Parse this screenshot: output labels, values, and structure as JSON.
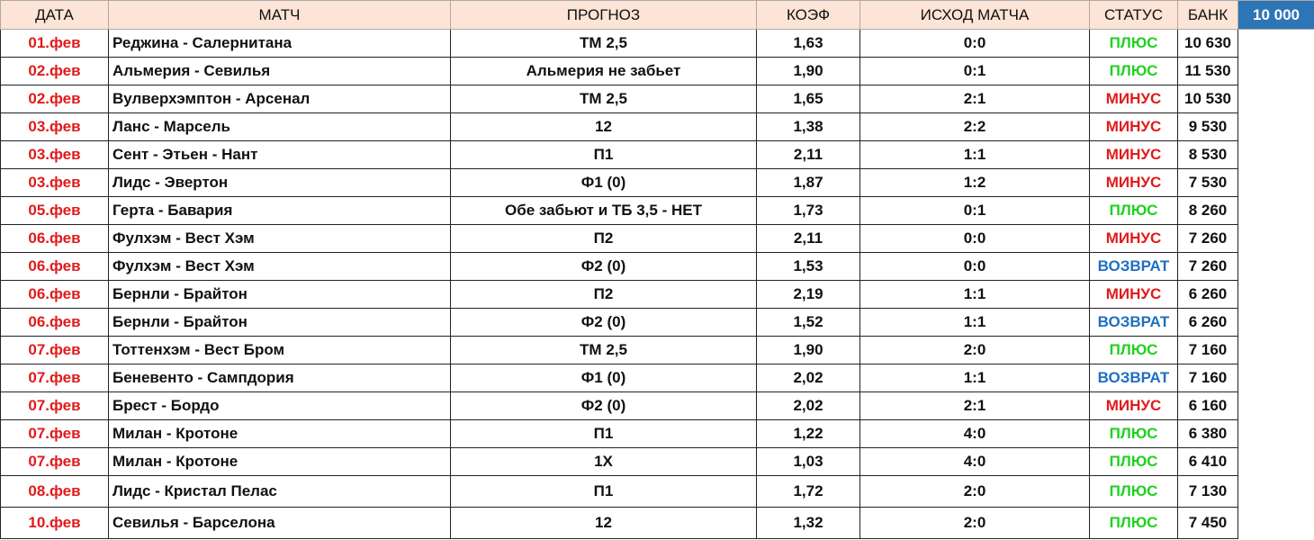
{
  "table": {
    "header": [
      "ДАТА",
      "МАТЧ",
      "ПРОГНОЗ",
      "КОЭФ",
      "ИСХОД МАТЧА",
      "СТАТУС",
      "БАНК"
    ],
    "bank_start": "10 000",
    "rows": [
      [
        "01.фев",
        "Реджина -  Салернитана",
        "ТМ 2,5",
        "1,63",
        "0:0",
        "ПЛЮС",
        "10 630"
      ],
      [
        "02.фев",
        "Альмерия -  Севилья",
        "Альмерия  не забьет",
        "1,90",
        "0:1",
        "ПЛЮС",
        "11 530"
      ],
      [
        "02.фев",
        "Вулверхэмптон -  Арсенал",
        "ТМ 2,5",
        "1,65",
        "2:1",
        "МИНУС",
        "10 530"
      ],
      [
        "03.фев",
        "Ланс -  Марсель",
        "12",
        "1,38",
        "2:2",
        "МИНУС",
        "9 530"
      ],
      [
        "03.фев",
        "Сент - Этьен -  Нант",
        "П1",
        "2,11",
        "1:1",
        "МИНУС",
        "8 530"
      ],
      [
        "03.фев",
        "Лидс -  Эвертон",
        "Ф1 (0)",
        "1,87",
        "1:2",
        "МИНУС",
        "7 530"
      ],
      [
        "05.фев",
        "Герта -  Бавария",
        "Обе забьют и ТБ 3,5 - НЕТ",
        "1,73",
        "0:1",
        "ПЛЮС",
        "8 260"
      ],
      [
        "06.фев",
        "Фулхэм -  Вест Хэм",
        "П2",
        "2,11",
        "0:0",
        "МИНУС",
        "7 260"
      ],
      [
        "06.фев",
        "Фулхэм -  Вест Хэм",
        "Ф2 (0)",
        "1,53",
        "0:0",
        "ВОЗВРАТ",
        "7 260"
      ],
      [
        "06.фев",
        "Бернли -  Брайтон",
        "П2",
        "2,19",
        "1:1",
        "МИНУС",
        "6 260"
      ],
      [
        "06.фев",
        "Бернли -  Брайтон",
        "Ф2 (0)",
        "1,52",
        "1:1",
        "ВОЗВРАТ",
        "6 260"
      ],
      [
        "07.фев",
        "Тоттенхэм -  Вест Бром",
        "ТМ 2,5",
        "1,90",
        "2:0",
        "ПЛЮС",
        "7 160"
      ],
      [
        "07.фев",
        "Беневенто -  Сампдория",
        "Ф1 (0)",
        "2,02",
        "1:1",
        "ВОЗВРАТ",
        "7 160"
      ],
      [
        "07.фев",
        "Брест -  Бордо",
        "Ф2 (0)",
        "2,02",
        "2:1",
        "МИНУС",
        "6 160"
      ],
      [
        "07.фев",
        "Милан -  Кротоне",
        "П1",
        "1,22",
        "4:0",
        "ПЛЮС",
        "6 380"
      ],
      [
        "07.фев",
        "Милан -  Кротоне",
        "1Х",
        "1,03",
        "4:0",
        "ПЛЮС",
        "6 410"
      ],
      [
        "08.фев",
        "Лидс -  Кристал Пелас",
        "П1",
        "1,72",
        "2:0",
        "ПЛЮС",
        "7 130"
      ],
      [
        "10.фев",
        "Севилья -  Барселона",
        "12",
        "1,32",
        "2:0",
        "ПЛЮС",
        "7 450"
      ]
    ],
    "status_colors": [
      "#1fd11f",
      "#1fd11f",
      "#e01b1b",
      "#e01b1b",
      "#e01b1b",
      "#e01b1b",
      "#1fd11f",
      "#e01b1b",
      "#1f6fc0",
      "#e01b1b",
      "#1f6fc0",
      "#1fd11f",
      "#1f6fc0",
      "#e01b1b",
      "#1fd11f",
      "#1fd11f",
      "#1fd11f",
      "#1fd11f"
    ]
  }
}
